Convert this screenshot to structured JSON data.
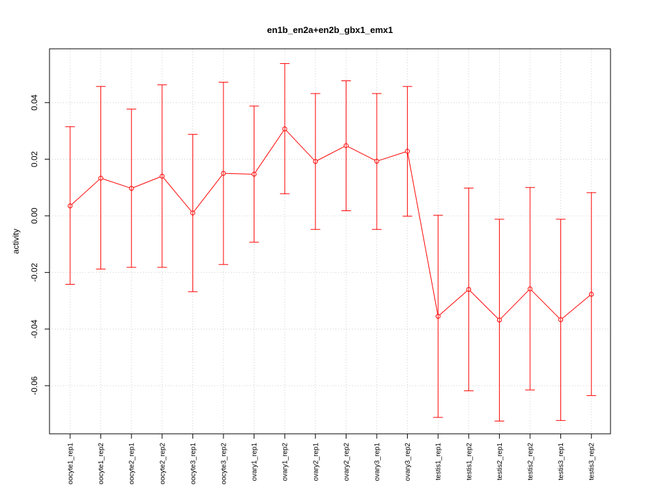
{
  "chart_data": {
    "type": "line",
    "title": "en1b_en2a+en2b_gbx1_emx1",
    "xlabel": "",
    "ylabel": "activity",
    "ylim": [
      -0.077,
      0.059
    ],
    "yticks": [
      -0.06,
      -0.04,
      -0.02,
      0.0,
      0.02,
      0.04
    ],
    "ytick_labels": [
      "-0.06",
      "-0.04",
      "-0.02",
      "0.00",
      "0.02",
      "0.04"
    ],
    "grid": true,
    "colors": {
      "series": "#ff0000",
      "grid": "#cccccc",
      "axis": "#000000"
    },
    "categories": [
      "oocyte1_rep1",
      "oocyte1_rep2",
      "oocyte2_rep1",
      "oocyte2_rep2",
      "oocyte3_rep1",
      "oocyte3_rep2",
      "ovary1_rep1",
      "ovary1_rep2",
      "ovary2_rep1",
      "ovary2_rep2",
      "ovary3_rep1",
      "ovary3_rep2",
      "testis1_rep1",
      "testis1_rep2",
      "testis2_rep1",
      "testis2_rep2",
      "testis3_rep1",
      "testis3_rep2"
    ],
    "series": [
      {
        "values": [
          0.0035,
          0.0133,
          0.0097,
          0.014,
          0.001,
          0.015,
          0.0147,
          0.0307,
          0.0192,
          0.0248,
          0.0193,
          0.0228,
          -0.0355,
          -0.026,
          -0.0368,
          -0.0258,
          -0.0367,
          -0.0277
        ],
        "upper": [
          0.0315,
          0.0457,
          0.0377,
          0.0463,
          0.0288,
          0.0472,
          0.0388,
          0.0538,
          0.0432,
          0.0477,
          0.0432,
          0.0457,
          0.0002,
          0.0098,
          -0.0012,
          0.01,
          -0.0012,
          0.0082
        ],
        "lower": [
          -0.0242,
          -0.0188,
          -0.0182,
          -0.0182,
          -0.0268,
          -0.0172,
          -0.0093,
          0.0078,
          -0.0048,
          0.0018,
          -0.0048,
          -0.0001,
          -0.0712,
          -0.0618,
          -0.0725,
          -0.0615,
          -0.0723,
          -0.0635
        ]
      }
    ]
  }
}
